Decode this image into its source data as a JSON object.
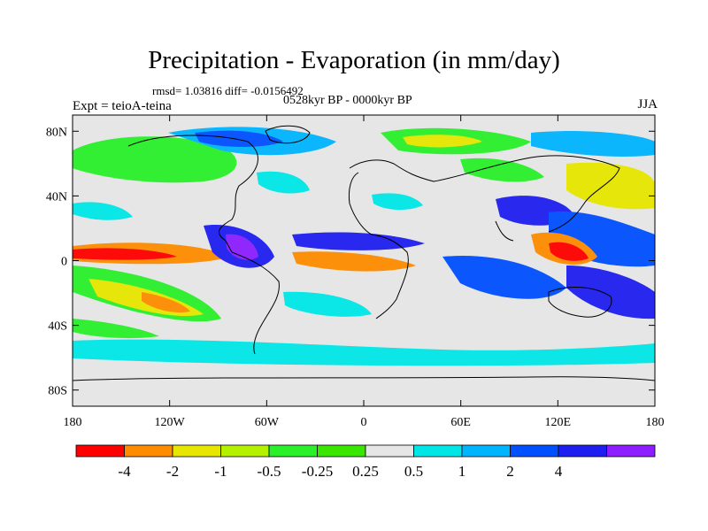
{
  "title": "Precipitation - Evaporation (in mm/day)",
  "stats": "rmsd= 1.03816 diff= -0.0156492",
  "period": "0528kyr BP - 0000kyr BP",
  "experiment": "Expt = teioA-teina",
  "season": "JJA",
  "lat_ticks": [
    "80N",
    "40N",
    "0",
    "40S",
    "80S"
  ],
  "lat_values": [
    80,
    40,
    0,
    -40,
    -80
  ],
  "lon_ticks": [
    "180",
    "120W",
    "60W",
    "0",
    "60E",
    "120E",
    "180"
  ],
  "lon_values": [
    -180,
    -120,
    -60,
    0,
    60,
    120,
    180
  ],
  "lat_range": [
    -90,
    90
  ],
  "lon_range": [
    -180,
    180
  ],
  "colorbar": {
    "labels": [
      "-4",
      "-2",
      "-1",
      "-0.5",
      "-0.25",
      "0.25",
      "0.5",
      "1",
      "2",
      "4"
    ],
    "colors": [
      "#ff0000",
      "#ff8c00",
      "#e6e600",
      "#b4f000",
      "#2af02a",
      "#39e600",
      "#e6e6e6",
      "#00e6e6",
      "#00b4ff",
      "#0050ff",
      "#1e1ef0",
      "#8c1eff"
    ]
  }
}
